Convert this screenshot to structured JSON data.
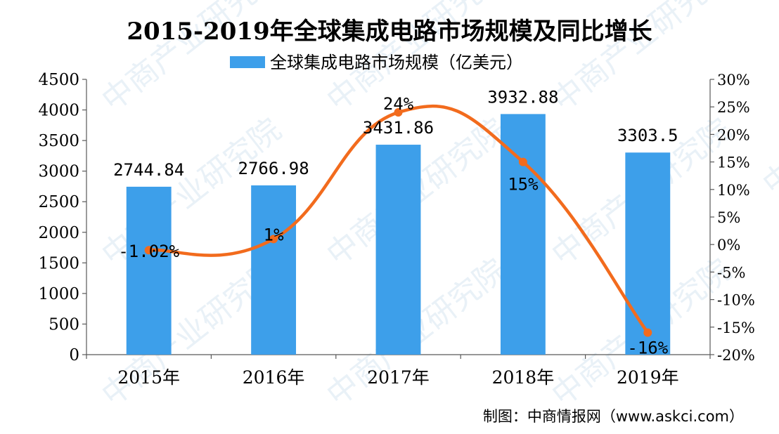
{
  "chart_data": {
    "type": "bar",
    "title": "2015-2019年全球集成电路市场规模及同比增长",
    "legend": {
      "position": "top",
      "label": "全球集成电路市场规模（亿美元）"
    },
    "categories": [
      "2015年",
      "2016年",
      "2017年",
      "2018年",
      "2019年"
    ],
    "series": [
      {
        "name": "全球集成电路市场规模（亿美元）",
        "type": "bar",
        "axis": "left",
        "values": [
          2744.84,
          2766.98,
          3431.86,
          3932.88,
          3303.5
        ],
        "labels": [
          "2744.84",
          "2766.98",
          "3431.86",
          "3932.88",
          "3303.5"
        ],
        "color": "#3D9FEA"
      },
      {
        "type": "line",
        "axis": "right",
        "values": [
          -1.02,
          1,
          24,
          15,
          -16
        ],
        "labels": [
          "-1.02%",
          "1%",
          "24%",
          "15%",
          "-16%"
        ],
        "color": "#F26B1D",
        "smooth": true
      }
    ],
    "y_left": {
      "min": 0,
      "max": 4500,
      "step": 500,
      "tick_labels": [
        "0",
        "500",
        "1000",
        "1500",
        "2000",
        "2500",
        "3000",
        "3500",
        "4000",
        "4500"
      ]
    },
    "y_right": {
      "min": -20,
      "max": 30,
      "step": 5,
      "tick_labels": [
        "-20%",
        "-15%",
        "-10%",
        "-5%",
        "0%",
        "5%",
        "10%",
        "15%",
        "20%",
        "25%",
        "30%"
      ]
    },
    "grid": false
  },
  "source": "制图：中商情报网（www.askci.com）",
  "watermark": "中商产业研究院",
  "colors": {
    "bar": "#3D9FEA",
    "line": "#F26B1D",
    "axis": "#595959",
    "text": "#000000"
  }
}
